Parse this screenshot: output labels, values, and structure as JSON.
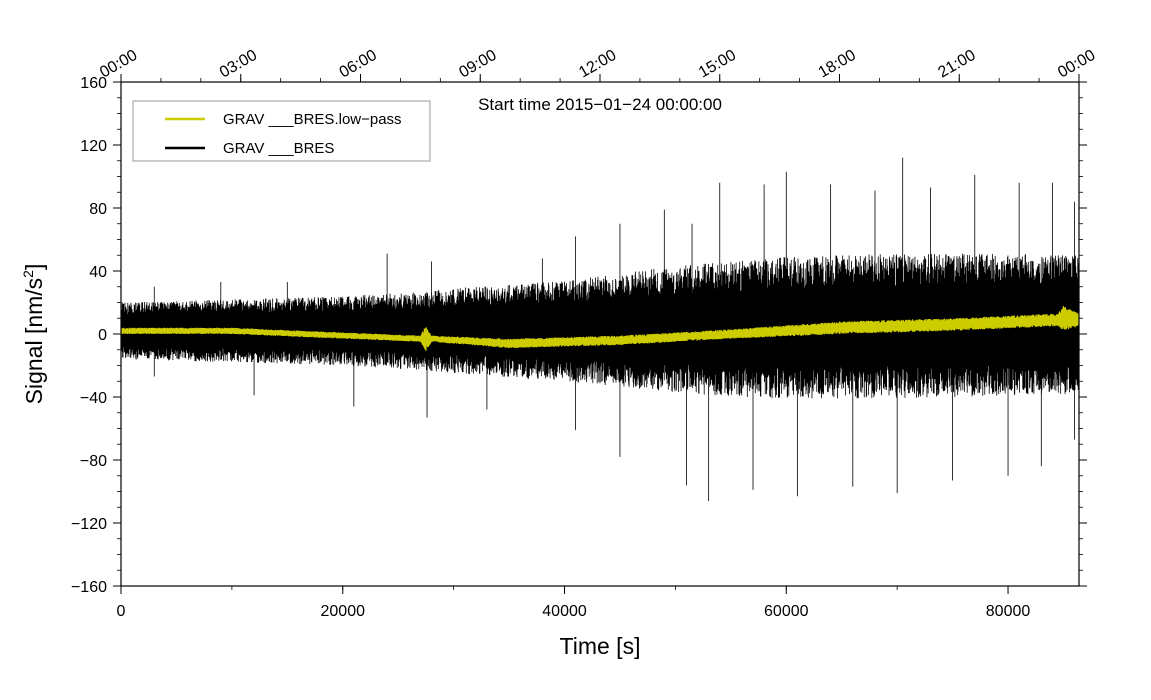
{
  "chart_data": {
    "type": "line",
    "xlabel": "Time [s]",
    "ylabel": "Signal [nm/s",
    "ylabel_sup": "2",
    "ylabel_suffix": "]",
    "annotation": "Start time 2015−01−24 00:00:00",
    "xlim": [
      0,
      86400
    ],
    "ylim": [
      -160,
      160
    ],
    "x_ticks": [
      0,
      20000,
      40000,
      60000,
      80000
    ],
    "x_tick_labels": [
      "0",
      "20000",
      "40000",
      "60000",
      "80000"
    ],
    "y_ticks": [
      -160,
      -120,
      -80,
      -40,
      0,
      40,
      80,
      120,
      160
    ],
    "y_tick_labels": [
      "−160",
      "−120",
      "−80",
      "−40",
      "0",
      "40",
      "80",
      "120",
      "160"
    ],
    "top_axis": {
      "ticks": [
        0,
        10800,
        21600,
        32400,
        43200,
        54000,
        64800,
        75600,
        86400
      ],
      "labels": [
        "00:00",
        "03:00",
        "06:00",
        "09:00",
        "12:00",
        "15:00",
        "18:00",
        "21:00",
        "00:00"
      ]
    },
    "legend_position": "top-left",
    "series": [
      {
        "name": "GRAV ___BRES.low−pass",
        "color": "#cccc00",
        "envelope_x": [
          0,
          10000,
          20000,
          27000,
          27500,
          28000,
          35000,
          45000,
          55000,
          65000,
          75000,
          84500,
          85000,
          86400
        ],
        "center": [
          2,
          2,
          -1,
          -3,
          -3,
          -3,
          -6,
          -4,
          0,
          4,
          6,
          9,
          10,
          9
        ],
        "amplitude": [
          2,
          2,
          2,
          2,
          8,
          2,
          3,
          3,
          3,
          4,
          4,
          4,
          8,
          4
        ]
      },
      {
        "name": "GRAV ___BRES",
        "color": "#000000",
        "envelope_x": [
          0,
          10000,
          20000,
          27000,
          30000,
          40000,
          50000,
          55000,
          60000,
          70000,
          80000,
          86400
        ],
        "center": [
          2,
          2,
          2,
          2,
          2,
          2,
          3,
          3,
          4,
          5,
          6,
          6
        ],
        "amplitude": [
          18,
          20,
          22,
          25,
          27,
          32,
          40,
          43,
          45,
          46,
          45,
          44
        ],
        "peaks_max": [
          [
            3000,
            30
          ],
          [
            9000,
            33
          ],
          [
            15000,
            33
          ],
          [
            24000,
            51
          ],
          [
            28000,
            46
          ],
          [
            38000,
            48
          ],
          [
            41000,
            62
          ],
          [
            45000,
            70
          ],
          [
            49000,
            79
          ],
          [
            51500,
            70
          ],
          [
            54000,
            96
          ],
          [
            58000,
            95
          ],
          [
            60000,
            103
          ],
          [
            64000,
            95
          ],
          [
            68000,
            91
          ],
          [
            70500,
            112
          ],
          [
            73000,
            93
          ],
          [
            77000,
            101
          ],
          [
            81000,
            96
          ],
          [
            84000,
            96
          ],
          [
            86000,
            84
          ]
        ],
        "peaks_min": [
          [
            3000,
            -27
          ],
          [
            12000,
            -39
          ],
          [
            21000,
            -46
          ],
          [
            27600,
            -53
          ],
          [
            33000,
            -48
          ],
          [
            41000,
            -61
          ],
          [
            45000,
            -78
          ],
          [
            51000,
            -96
          ],
          [
            53000,
            -106
          ],
          [
            57000,
            -99
          ],
          [
            61000,
            -103
          ],
          [
            66000,
            -97
          ],
          [
            70000,
            -101
          ],
          [
            75000,
            -93
          ],
          [
            80000,
            -90
          ],
          [
            83000,
            -84
          ],
          [
            86000,
            -67
          ]
        ]
      }
    ]
  }
}
